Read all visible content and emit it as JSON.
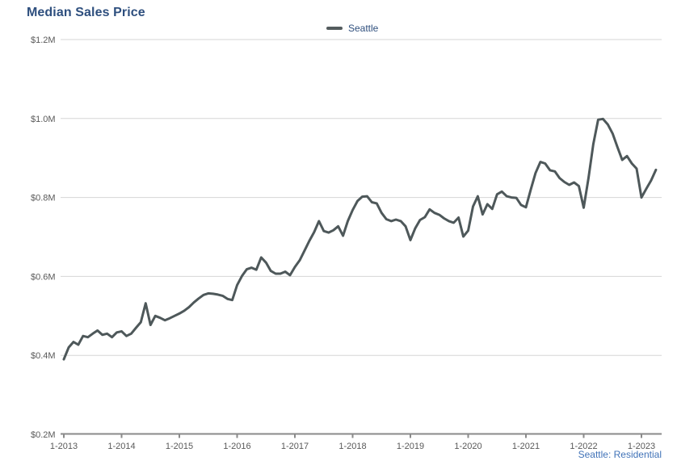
{
  "page": {
    "title": "Median Sales Price",
    "source_note": "Seattle: Residential"
  },
  "legend": {
    "items": [
      {
        "label": "Seattle",
        "swatch_color": "#545c5e"
      }
    ]
  },
  "colors": {
    "background": "#ffffff",
    "title_text": "#2e4f7e",
    "legend_text": "#2f4f7d",
    "line": "#4e585a",
    "gridline": "#d6d6d6",
    "axis_line": "#8a8a8a",
    "tick_label": "#595959",
    "source_text": "#4173b8"
  },
  "chart_data": {
    "type": "line",
    "title": "Median Sales Price",
    "x_frequency": "monthly",
    "x_start": "2013-01",
    "x_end": "2023-04",
    "x_tick_labels": [
      "1-2013",
      "1-2014",
      "1-2015",
      "1-2016",
      "1-2017",
      "1-2018",
      "1-2019",
      "1-2020",
      "1-2021",
      "1-2022",
      "1-2023"
    ],
    "y_tick_labels": [
      "$0.2M",
      "$0.4M",
      "$0.6M",
      "$0.8M",
      "$1.0M",
      "$1.2M"
    ],
    "y_tick_values": [
      0.2,
      0.4,
      0.6,
      0.8,
      1.0,
      1.2
    ],
    "ylim": [
      0.2,
      1.2
    ],
    "y_unit": "millions USD",
    "grid": "horizontal",
    "legend_position": "top-center",
    "series": [
      {
        "name": "Seattle",
        "color": "#4e585a",
        "values": [
          0.39,
          0.42,
          0.434,
          0.427,
          0.449,
          0.446,
          0.455,
          0.463,
          0.452,
          0.455,
          0.446,
          0.458,
          0.461,
          0.449,
          0.455,
          0.47,
          0.484,
          0.532,
          0.477,
          0.5,
          0.495,
          0.489,
          0.494,
          0.5,
          0.506,
          0.513,
          0.522,
          0.534,
          0.544,
          0.553,
          0.557,
          0.556,
          0.554,
          0.551,
          0.543,
          0.54,
          0.578,
          0.601,
          0.618,
          0.622,
          0.617,
          0.648,
          0.635,
          0.614,
          0.607,
          0.607,
          0.612,
          0.603,
          0.624,
          0.641,
          0.665,
          0.69,
          0.712,
          0.74,
          0.715,
          0.711,
          0.717,
          0.727,
          0.703,
          0.74,
          0.768,
          0.791,
          0.802,
          0.803,
          0.788,
          0.785,
          0.761,
          0.745,
          0.74,
          0.744,
          0.74,
          0.727,
          0.692,
          0.722,
          0.743,
          0.75,
          0.77,
          0.761,
          0.756,
          0.747,
          0.74,
          0.736,
          0.749,
          0.701,
          0.716,
          0.777,
          0.803,
          0.757,
          0.783,
          0.771,
          0.808,
          0.815,
          0.803,
          0.8,
          0.799,
          0.781,
          0.775,
          0.82,
          0.862,
          0.89,
          0.886,
          0.869,
          0.866,
          0.849,
          0.839,
          0.832,
          0.838,
          0.829,
          0.774,
          0.85,
          0.935,
          0.997,
          0.999,
          0.985,
          0.962,
          0.928,
          0.895,
          0.905,
          0.886,
          0.873,
          0.8,
          0.822,
          0.843,
          0.87
        ]
      }
    ]
  }
}
